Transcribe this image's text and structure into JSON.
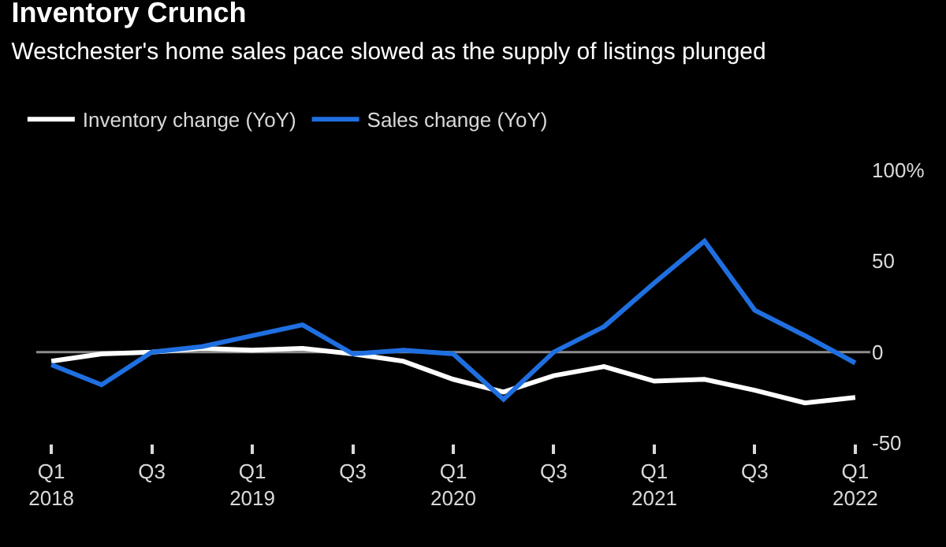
{
  "chart_data": {
    "type": "line",
    "title": "Inventory Crunch",
    "subtitle": "Westchester's home sales pace slowed as the supply of listings plunged",
    "categories": [
      "Q1\n2018",
      null,
      "Q3",
      null,
      "Q1\n2019",
      null,
      "Q3",
      null,
      "Q1\n2020",
      null,
      "Q3",
      null,
      "Q1\n2021",
      null,
      "Q3",
      null,
      "Q1\n2022"
    ],
    "series": [
      {
        "name": "Inventory change (YoY)",
        "color": "#ffffff",
        "values": [
          -5,
          -1,
          0,
          2,
          1,
          2,
          -1,
          -5,
          -15,
          -22,
          -13,
          -8,
          -16,
          -15,
          -21,
          -28,
          -25
        ]
      },
      {
        "name": "Sales change (YoY)",
        "color": "#1f6fe0",
        "values": [
          -7,
          -18,
          0,
          3,
          9,
          15,
          -1,
          1,
          -1,
          -26,
          0,
          14,
          38,
          61,
          23,
          9,
          -6
        ]
      }
    ],
    "ylim": [
      -50,
      100
    ],
    "yticks": [
      {
        "value": 100,
        "label": "100%"
      },
      50,
      0,
      -50
    ],
    "ref_lines": [
      {
        "axis": "y",
        "value": 0,
        "color": "#8c8c8c"
      }
    ],
    "legend": "top left",
    "grid": false
  }
}
